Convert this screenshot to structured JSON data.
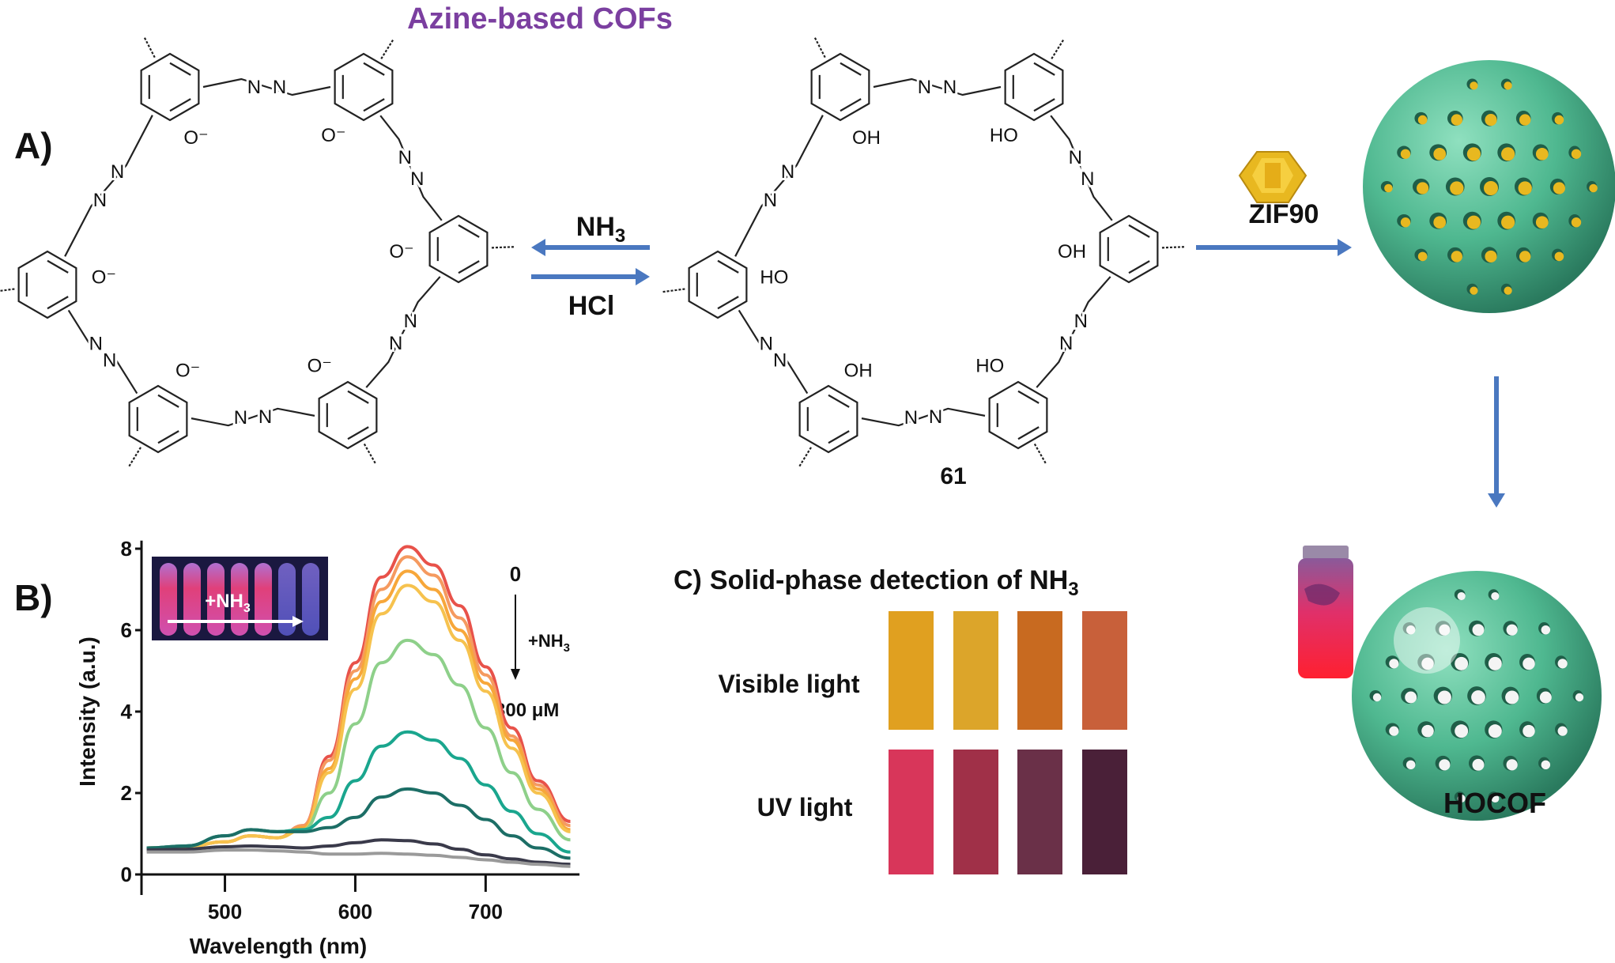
{
  "header": {
    "title": "Azine-based COFs",
    "title_color": "#7b3fa0"
  },
  "panel_a": {
    "label": "A)",
    "arrow_top": {
      "main": "NH",
      "sub": "3"
    },
    "arrow_bottom": "HCl",
    "arrow_color": "#4a78c0",
    "compound_number": "61",
    "left_atoms": {
      "linker": "N",
      "oxygen": [
        "O⁻",
        "O⁻",
        "O⁻",
        "O⁻",
        "O⁻",
        "O⁻"
      ]
    },
    "right_atoms": {
      "linker": "N",
      "oxygen": [
        "OH",
        "HO",
        "OH",
        "HO",
        "OH",
        "HO"
      ]
    },
    "zif_label": "ZIF90",
    "zif_color": "#e8b820",
    "sphere_color": "#4fb890",
    "product_label": "HOCOF"
  },
  "panel_b": {
    "label": "B)"
  },
  "chart_data": {
    "type": "line",
    "xlabel": "Wavelength (nm)",
    "ylabel": "Intensity (a.u.)",
    "xlim": [
      436,
      772
    ],
    "ylim": [
      0,
      8.2
    ],
    "xticks": [
      500,
      600,
      700
    ],
    "yticks": [
      0,
      2,
      4,
      6,
      8
    ],
    "grid": false,
    "x": [
      440,
      470,
      500,
      520,
      540,
      560,
      580,
      600,
      620,
      640,
      660,
      680,
      700,
      720,
      740,
      765
    ],
    "series": [
      {
        "color": "#e8524a",
        "values": [
          0.65,
          0.68,
          0.8,
          0.95,
          0.9,
          1.2,
          2.9,
          5.2,
          7.3,
          8.05,
          7.6,
          6.6,
          5.1,
          3.6,
          2.3,
          1.3
        ]
      },
      {
        "color": "#f59a60",
        "values": [
          0.65,
          0.68,
          0.8,
          0.95,
          0.9,
          1.2,
          2.8,
          5.0,
          7.0,
          7.8,
          7.35,
          6.3,
          4.9,
          3.4,
          2.2,
          1.2
        ]
      },
      {
        "color": "#f7a73a",
        "values": [
          0.65,
          0.68,
          0.8,
          0.95,
          0.9,
          1.15,
          2.6,
          4.8,
          6.7,
          7.45,
          7.0,
          6.0,
          4.7,
          3.3,
          2.1,
          1.1
        ]
      },
      {
        "color": "#f6c24e",
        "values": [
          0.65,
          0.68,
          0.8,
          0.95,
          0.9,
          1.1,
          2.5,
          4.55,
          6.4,
          7.1,
          6.7,
          5.75,
          4.5,
          3.1,
          2.0,
          1.05
        ]
      },
      {
        "color": "#8ed08a",
        "values": [
          0.65,
          0.7,
          0.95,
          1.1,
          1.05,
          1.1,
          2.0,
          3.7,
          5.2,
          5.75,
          5.4,
          4.65,
          3.6,
          2.5,
          1.6,
          0.85
        ]
      },
      {
        "color": "#1aa68e",
        "values": [
          0.65,
          0.7,
          0.95,
          1.1,
          1.05,
          1.1,
          1.4,
          2.3,
          3.15,
          3.5,
          3.3,
          2.85,
          2.2,
          1.55,
          1.0,
          0.55
        ]
      },
      {
        "color": "#1c6e66",
        "values": [
          0.65,
          0.7,
          0.95,
          1.1,
          1.05,
          1.05,
          1.15,
          1.4,
          1.9,
          2.1,
          2.0,
          1.7,
          1.35,
          0.95,
          0.65,
          0.4
        ]
      },
      {
        "color": "#3a3a4a",
        "values": [
          0.6,
          0.62,
          0.68,
          0.7,
          0.68,
          0.65,
          0.7,
          0.78,
          0.85,
          0.83,
          0.75,
          0.62,
          0.48,
          0.38,
          0.3,
          0.25
        ]
      },
      {
        "color": "#9a9a9a",
        "values": [
          0.55,
          0.55,
          0.6,
          0.6,
          0.58,
          0.55,
          0.5,
          0.5,
          0.52,
          0.5,
          0.47,
          0.42,
          0.36,
          0.3,
          0.25,
          0.2
        ]
      }
    ],
    "annotations": {
      "start": "0",
      "reagent": {
        "main": "+NH",
        "sub": "3"
      },
      "end": "300 μM"
    },
    "inset": {
      "text": {
        "main": "+NH",
        "sub": "3"
      }
    }
  },
  "panel_c": {
    "label": "C)",
    "title": {
      "main": "Solid-phase detection of NH",
      "sub": "3"
    },
    "rows": [
      {
        "label": "Visible light",
        "swatches": [
          "#e0a020",
          "#dca52a",
          "#c86a20",
          "#c8603a"
        ]
      },
      {
        "label": "UV light",
        "swatches": [
          "#d8365a",
          "#a03048",
          "#6a3048",
          "#4a2038"
        ]
      }
    ]
  }
}
